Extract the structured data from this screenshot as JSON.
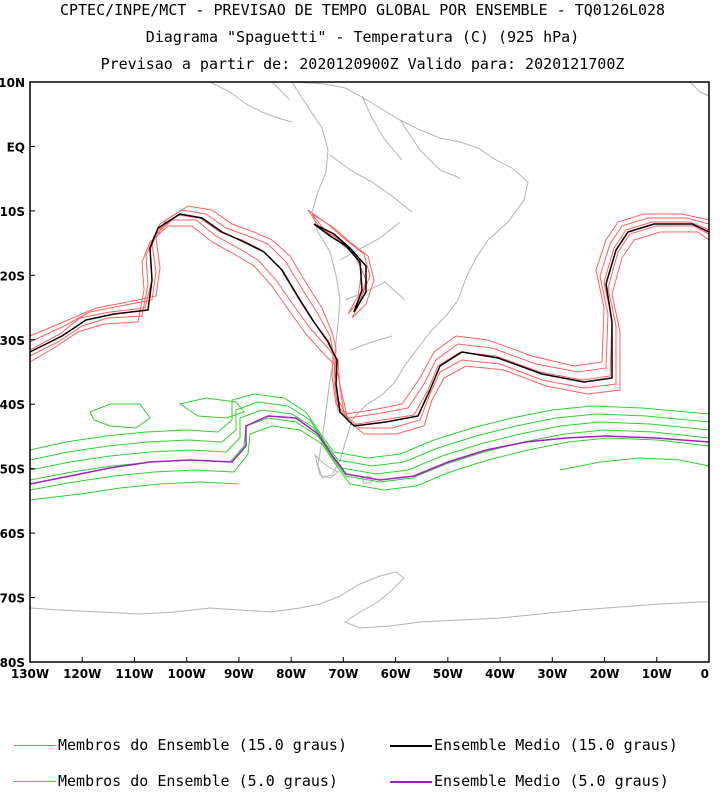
{
  "header": {
    "line1": "CPTEC/INPE/MCT - PREVISAO DE TEMPO GLOBAL POR ENSEMBLE - TQ0126L028",
    "line2": "Diagrama \"Spaguetti\" - Temperatura (C) (925 hPa)",
    "line3": "Previsao a partir de: 2020120900Z  Valido para: 2020121700Z"
  },
  "map": {
    "lat_labels": [
      "10N",
      "EQ",
      "10S",
      "20S",
      "30S",
      "40S",
      "50S",
      "60S",
      "70S",
      "80S"
    ],
    "lon_labels": [
      "130W",
      "120W",
      "110W",
      "100W",
      "90W",
      "80W",
      "70W",
      "60W",
      "50W",
      "40W",
      "30W",
      "20W",
      "10W",
      "0"
    ],
    "lat_range": [
      10,
      -80
    ],
    "lon_range": [
      -130,
      0
    ],
    "coast_color": "#b4b4b4"
  },
  "legend": {
    "items": [
      {
        "label": "Membros do Ensemble (15.0 graus)",
        "color": "#ff6060"
      },
      {
        "label": "Ensemble Medio (15.0 graus)",
        "color": "#000000"
      },
      {
        "label": "Membros do Ensemble (5.0 graus)",
        "color": "#30d030"
      },
      {
        "label": "Ensemble Medio (5.0 graus)",
        "color": "#a020c0"
      }
    ]
  }
}
